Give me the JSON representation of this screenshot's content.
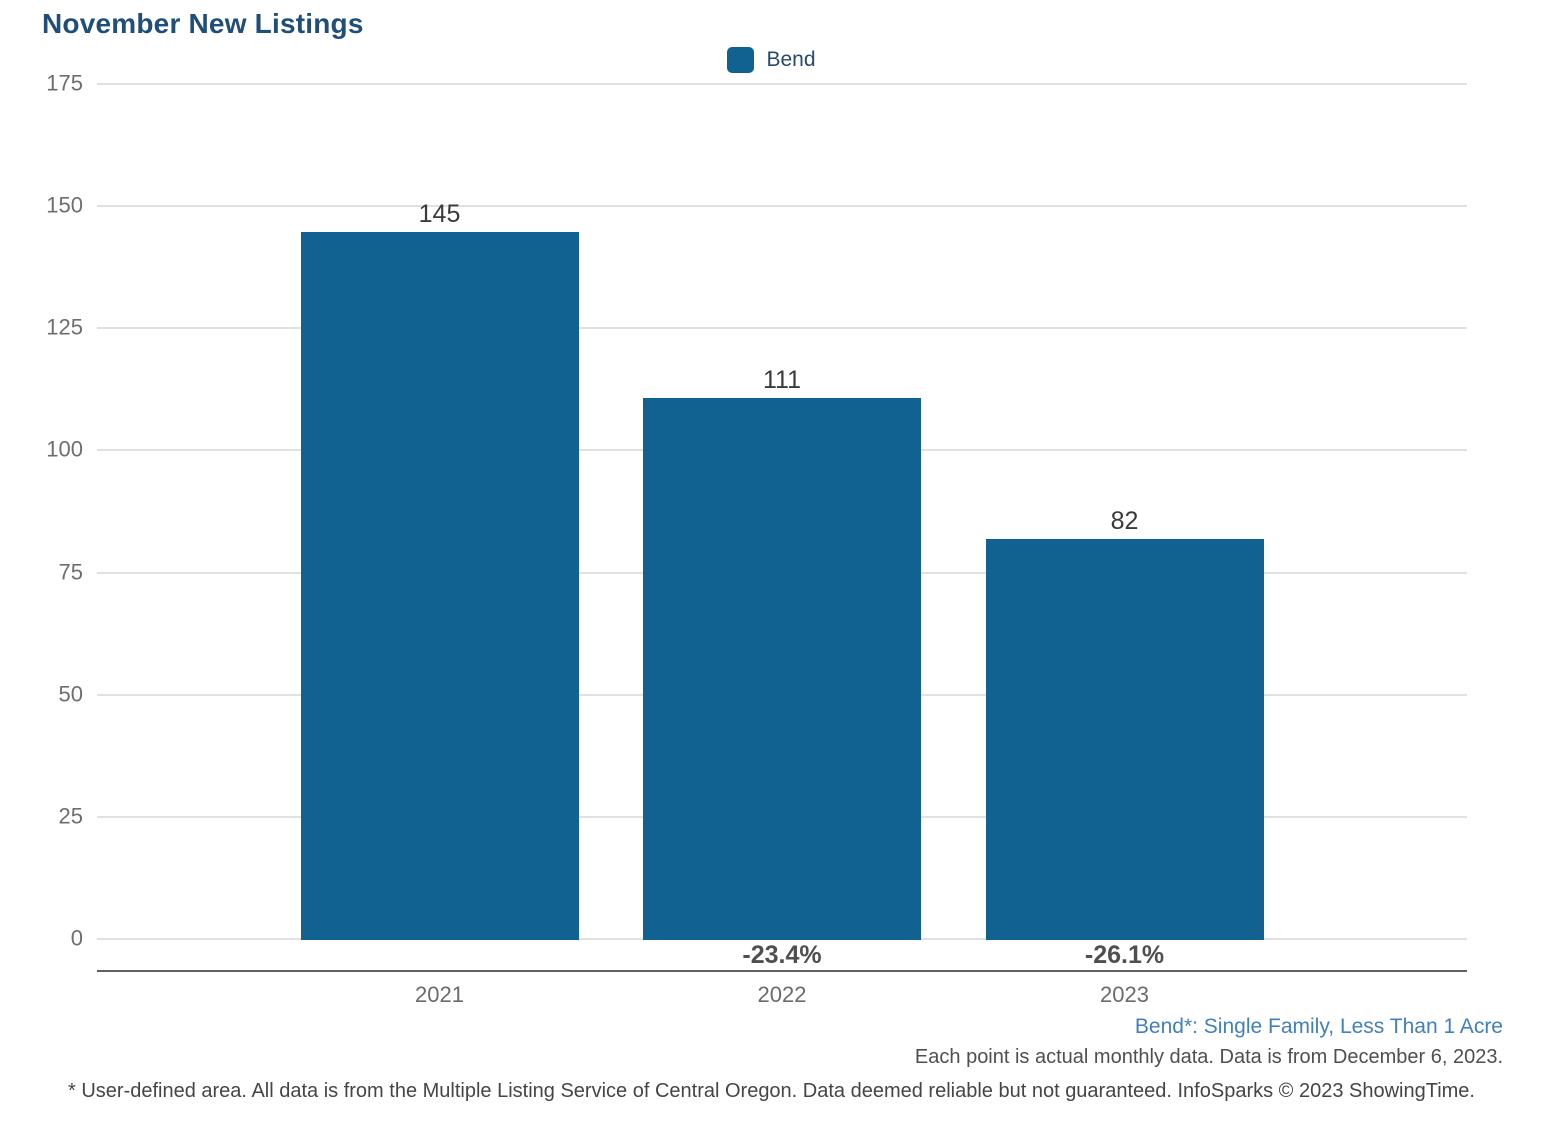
{
  "chart": {
    "title": "November New Listings",
    "legend_label": "Bend",
    "accent_color": "#116291"
  },
  "chart_data": {
    "type": "bar",
    "title": "November New Listings",
    "categories": [
      "2021",
      "2022",
      "2023"
    ],
    "series": [
      {
        "name": "Bend",
        "values": [
          145,
          111,
          82
        ],
        "color": "#116291"
      }
    ],
    "bar_value_labels": [
      "145",
      "111",
      "82"
    ],
    "pct_change_labels": [
      "",
      "-23.4%",
      "-26.1%"
    ],
    "xlabel": "",
    "ylabel": "",
    "ylim": [
      0,
      175
    ],
    "y_ticks": [
      0,
      25,
      50,
      75,
      100,
      125,
      150,
      175
    ],
    "grid": "horizontal",
    "legend_position": "top-center"
  },
  "footer": {
    "series_definition": "Bend*: Single Family, Less Than 1 Acre",
    "data_note": "Each point is actual monthly data. Data is from December 6, 2023.",
    "disclaimer": "* User-defined area. All data is from the Multiple Listing Service of Central Oregon. Data deemed reliable but not guaranteed. InfoSparks © 2023 ShowingTime."
  }
}
